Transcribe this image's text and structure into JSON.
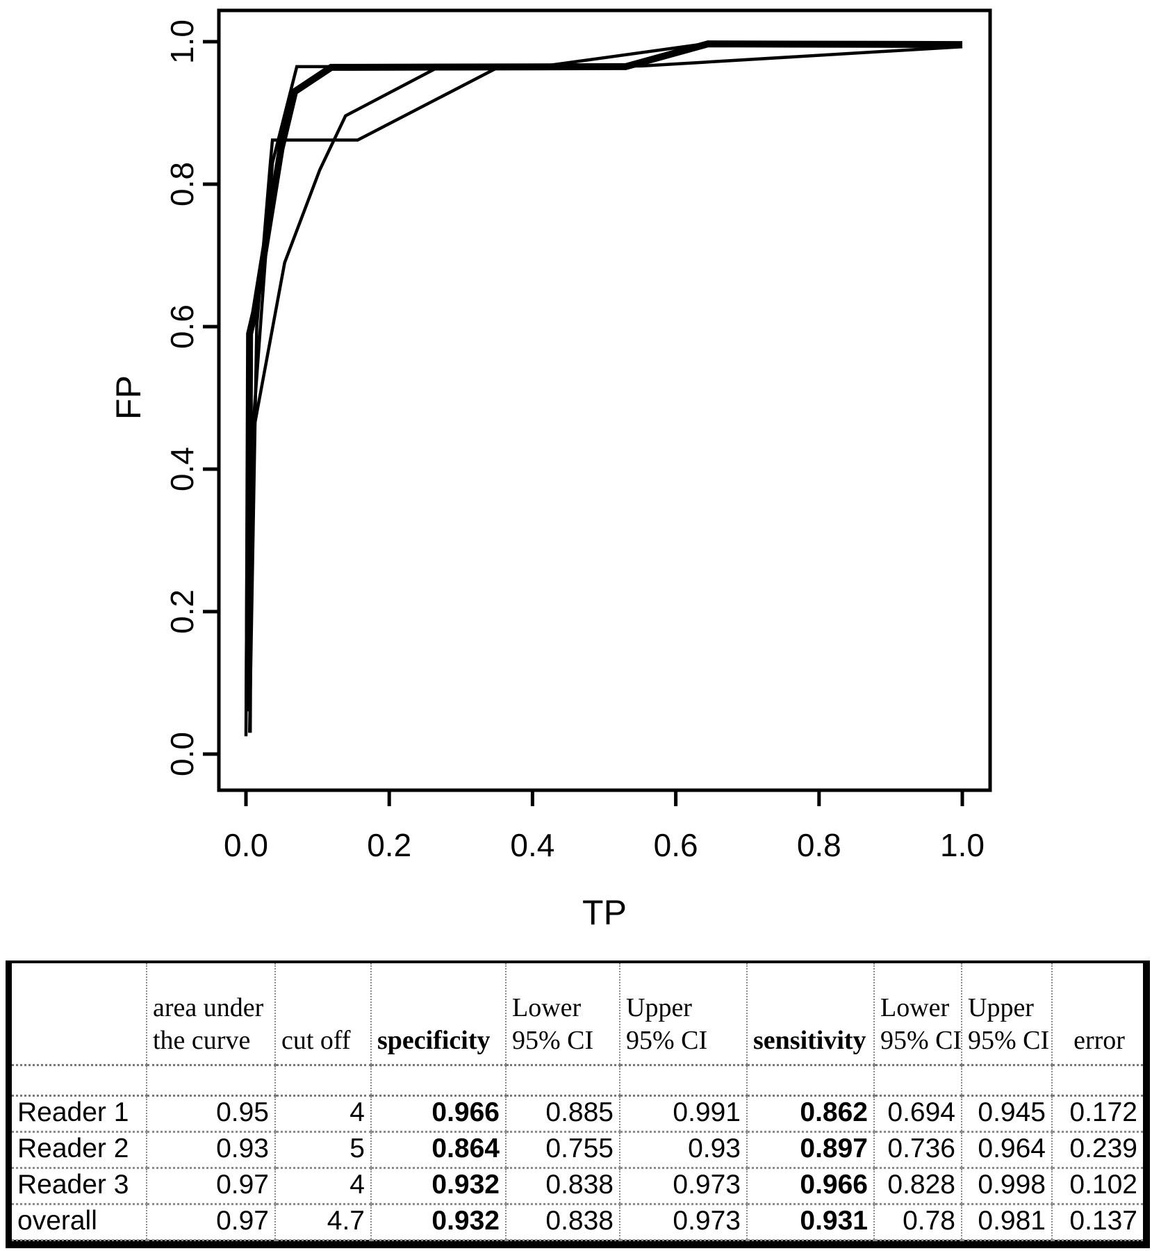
{
  "chart_data": {
    "type": "line",
    "title": "",
    "xlabel": "TP",
    "ylabel": "FP",
    "xlim": [
      -0.04,
      1.04
    ],
    "ylim": [
      -0.05,
      1.045
    ],
    "x_tick_labels": [
      "0.0",
      "0.2",
      "0.4",
      "0.6",
      "0.8",
      "1.0"
    ],
    "y_tick_labels": [
      "0.0",
      "0.2",
      "0.4",
      "0.6",
      "0.8",
      "1.0"
    ],
    "x_tick_values": [
      0,
      0.2,
      0.4,
      0.6,
      0.8,
      1.0
    ],
    "y_tick_values": [
      0,
      0.2,
      0.4,
      0.6,
      0.8,
      1.0
    ],
    "grid": false,
    "legend": "none",
    "line_color": "#000000",
    "series": [
      {
        "name": "Reader 1",
        "style": "thin",
        "points": [
          [
            0.005,
            0.03
          ],
          [
            0.015,
            0.6
          ],
          [
            0.034,
            0.83
          ],
          [
            0.037,
            0.862
          ],
          [
            0.156,
            0.862
          ],
          [
            0.352,
            0.964
          ],
          [
            0.553,
            0.966
          ],
          [
            1.0,
            0.993
          ]
        ]
      },
      {
        "name": "Reader 2",
        "style": "thin",
        "points": [
          [
            0.006,
            0.03
          ],
          [
            0.008,
            0.44
          ],
          [
            0.054,
            0.69
          ],
          [
            0.103,
            0.82
          ],
          [
            0.139,
            0.896
          ],
          [
            0.268,
            0.964
          ],
          [
            0.53,
            0.965
          ],
          [
            0.645,
            0.997
          ],
          [
            1.0,
            0.997
          ]
        ]
      },
      {
        "name": "Reader 3",
        "style": "thin",
        "points": [
          [
            0.0,
            0.025
          ],
          [
            0.002,
            0.4
          ],
          [
            0.01,
            0.46
          ],
          [
            0.037,
            0.83
          ],
          [
            0.071,
            0.965
          ],
          [
            0.41,
            0.965
          ],
          [
            0.64,
            0.997
          ],
          [
            1.0,
            0.996
          ]
        ]
      },
      {
        "name": "overall",
        "style": "thick",
        "points": [
          [
            0.003,
            0.06
          ],
          [
            0.005,
            0.59
          ],
          [
            0.012,
            0.62
          ],
          [
            0.049,
            0.85
          ],
          [
            0.068,
            0.93
          ],
          [
            0.119,
            0.964
          ],
          [
            0.53,
            0.965
          ],
          [
            0.645,
            0.997
          ],
          [
            1.0,
            0.996
          ]
        ]
      }
    ]
  },
  "table": {
    "columns": [
      {
        "lines": [
          ""
        ],
        "bold": false,
        "center": false
      },
      {
        "lines": [
          "area under",
          "the curve"
        ],
        "bold": false,
        "center": false
      },
      {
        "lines": [
          "cut off"
        ],
        "bold": false,
        "center": false
      },
      {
        "lines": [
          "specificity"
        ],
        "bold": true,
        "center": false
      },
      {
        "lines": [
          "Lower",
          "95% CI"
        ],
        "bold": false,
        "center": false
      },
      {
        "lines": [
          "Upper",
          "95% CI"
        ],
        "bold": false,
        "center": false
      },
      {
        "lines": [
          "sensitivity"
        ],
        "bold": true,
        "center": false
      },
      {
        "lines": [
          "Lower",
          "95% CI"
        ],
        "bold": false,
        "center": false
      },
      {
        "lines": [
          "Upper",
          "95% CI"
        ],
        "bold": false,
        "center": false
      },
      {
        "lines": [
          "error"
        ],
        "bold": false,
        "center": true
      }
    ],
    "bold_columns": [
      3,
      6
    ],
    "rows": [
      [
        "Reader 1",
        "0.95",
        "4",
        "0.966",
        "0.885",
        "0.991",
        "0.862",
        "0.694",
        "0.945",
        "0.172"
      ],
      [
        "Reader 2",
        "0.93",
        "5",
        "0.864",
        "0.755",
        "0.93",
        "0.897",
        "0.736",
        "0.964",
        "0.239"
      ],
      [
        "Reader 3",
        "0.97",
        "4",
        "0.932",
        "0.838",
        "0.973",
        "0.966",
        "0.828",
        "0.998",
        "0.102"
      ],
      [
        "overall",
        "0.97",
        "4.7",
        "0.932",
        "0.838",
        "0.973",
        "0.931",
        "0.78",
        "0.981",
        "0.137"
      ]
    ]
  }
}
